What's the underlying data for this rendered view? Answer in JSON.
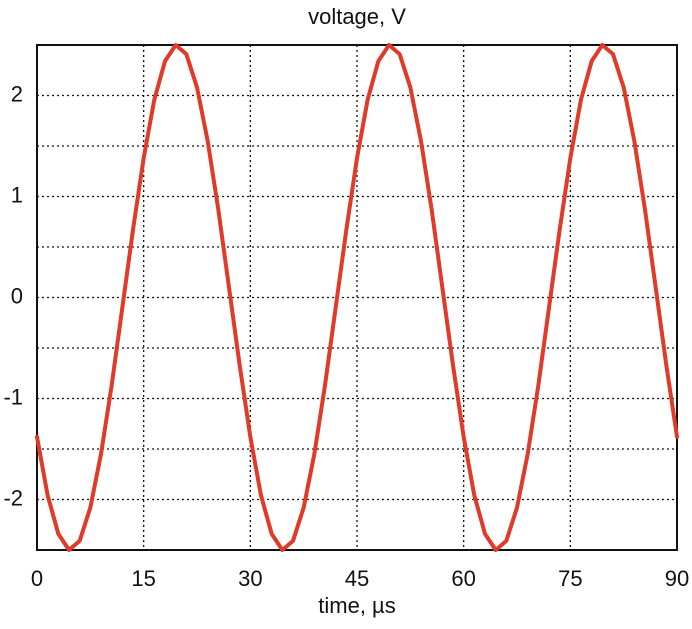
{
  "chart_data": {
    "type": "line",
    "title": "voltage, V",
    "x_label": "time, µs",
    "x": [
      0,
      1.5,
      3,
      4.5,
      6,
      7.5,
      9,
      10.5,
      12,
      13.5,
      15,
      16.5,
      18,
      19.5,
      21,
      22.5,
      24,
      25.5,
      27,
      28.5,
      30,
      31.5,
      33,
      34.5,
      36,
      37.5,
      39,
      40.5,
      42,
      43.5,
      45,
      46.5,
      48,
      49.5,
      51,
      52.5,
      54,
      55.5,
      57,
      58.5,
      60,
      61.5,
      63,
      64.5,
      66,
      67.5,
      69,
      70.5,
      72,
      73.5,
      75,
      76.5,
      78,
      79.5,
      81,
      82.5,
      84,
      85.5,
      87,
      88.5,
      90
    ],
    "series": [
      {
        "color": "#e03a2a",
        "values": [
          -1.38,
          -1.96,
          -2.34,
          -2.5,
          -2.41,
          -2.08,
          -1.55,
          -0.87,
          -0.1,
          0.67,
          1.38,
          1.96,
          2.34,
          2.5,
          2.41,
          2.08,
          1.55,
          0.87,
          0.1,
          -0.67,
          -1.38,
          -1.96,
          -2.34,
          -2.5,
          -2.41,
          -2.08,
          -1.55,
          -0.87,
          -0.1,
          0.67,
          1.38,
          1.96,
          2.34,
          2.5,
          2.41,
          2.08,
          1.55,
          0.87,
          0.1,
          -0.67,
          -1.38,
          -1.96,
          -2.34,
          -2.5,
          -2.41,
          -2.08,
          -1.55,
          -0.87,
          -0.1,
          0.67,
          1.38,
          1.96,
          2.34,
          2.5,
          2.41,
          2.08,
          1.55,
          0.87,
          0.1,
          -0.67,
          -1.38
        ]
      }
    ],
    "xlim": [
      0,
      90
    ],
    "xticks": [
      0,
      15,
      30,
      45,
      60,
      75,
      90
    ],
    "ylim": [
      -2.5,
      2.5
    ],
    "yticks": [
      -2,
      -1,
      0,
      1,
      2
    ],
    "grid": true
  }
}
